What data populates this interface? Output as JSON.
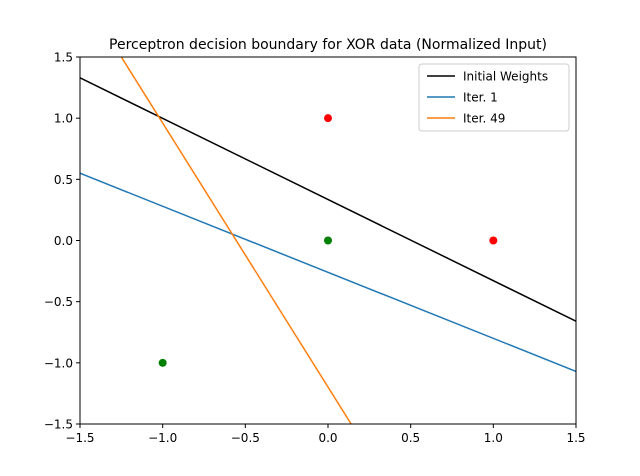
{
  "chart_data": {
    "type": "line",
    "title": "Perceptron decision boundary for XOR data (Normalized Input)",
    "xlabel": "",
    "ylabel": "",
    "xlim": [
      -1.5,
      1.5
    ],
    "ylim": [
      -1.5,
      1.5
    ],
    "xticks": [
      -1.5,
      -1.0,
      -0.5,
      0.0,
      0.5,
      1.0,
      1.5
    ],
    "xtick_labels": [
      "−1.5",
      "−1.0",
      "−0.5",
      "0.0",
      "0.5",
      "1.0",
      "1.5"
    ],
    "yticks": [
      -1.5,
      -1.0,
      -0.5,
      0.0,
      0.5,
      1.0,
      1.5
    ],
    "ytick_labels": [
      "−1.5",
      "−1.0",
      "−0.5",
      "0.0",
      "0.5",
      "1.0",
      "1.5"
    ],
    "grid": false,
    "legend_position": "top-right",
    "series": [
      {
        "name": "Initial Weights",
        "color": "#000000",
        "x": [
          -1.5,
          1.5
        ],
        "y": [
          1.33,
          -0.66
        ]
      },
      {
        "name": "Iter. 1",
        "color": "#1f77b4",
        "x": [
          -1.5,
          1.5
        ],
        "y": [
          0.55,
          -1.07
        ]
      },
      {
        "name": "Iter. 49",
        "color": "#ff7f0e",
        "x": [
          -1.25,
          0.14
        ],
        "y": [
          1.5,
          -1.5
        ]
      }
    ],
    "points": [
      {
        "x": 0,
        "y": 1,
        "color": "#ff0000"
      },
      {
        "x": 1,
        "y": 0,
        "color": "#ff0000"
      },
      {
        "x": 0,
        "y": 0,
        "color": "#008000"
      },
      {
        "x": -1,
        "y": -1,
        "color": "#008000"
      }
    ]
  }
}
